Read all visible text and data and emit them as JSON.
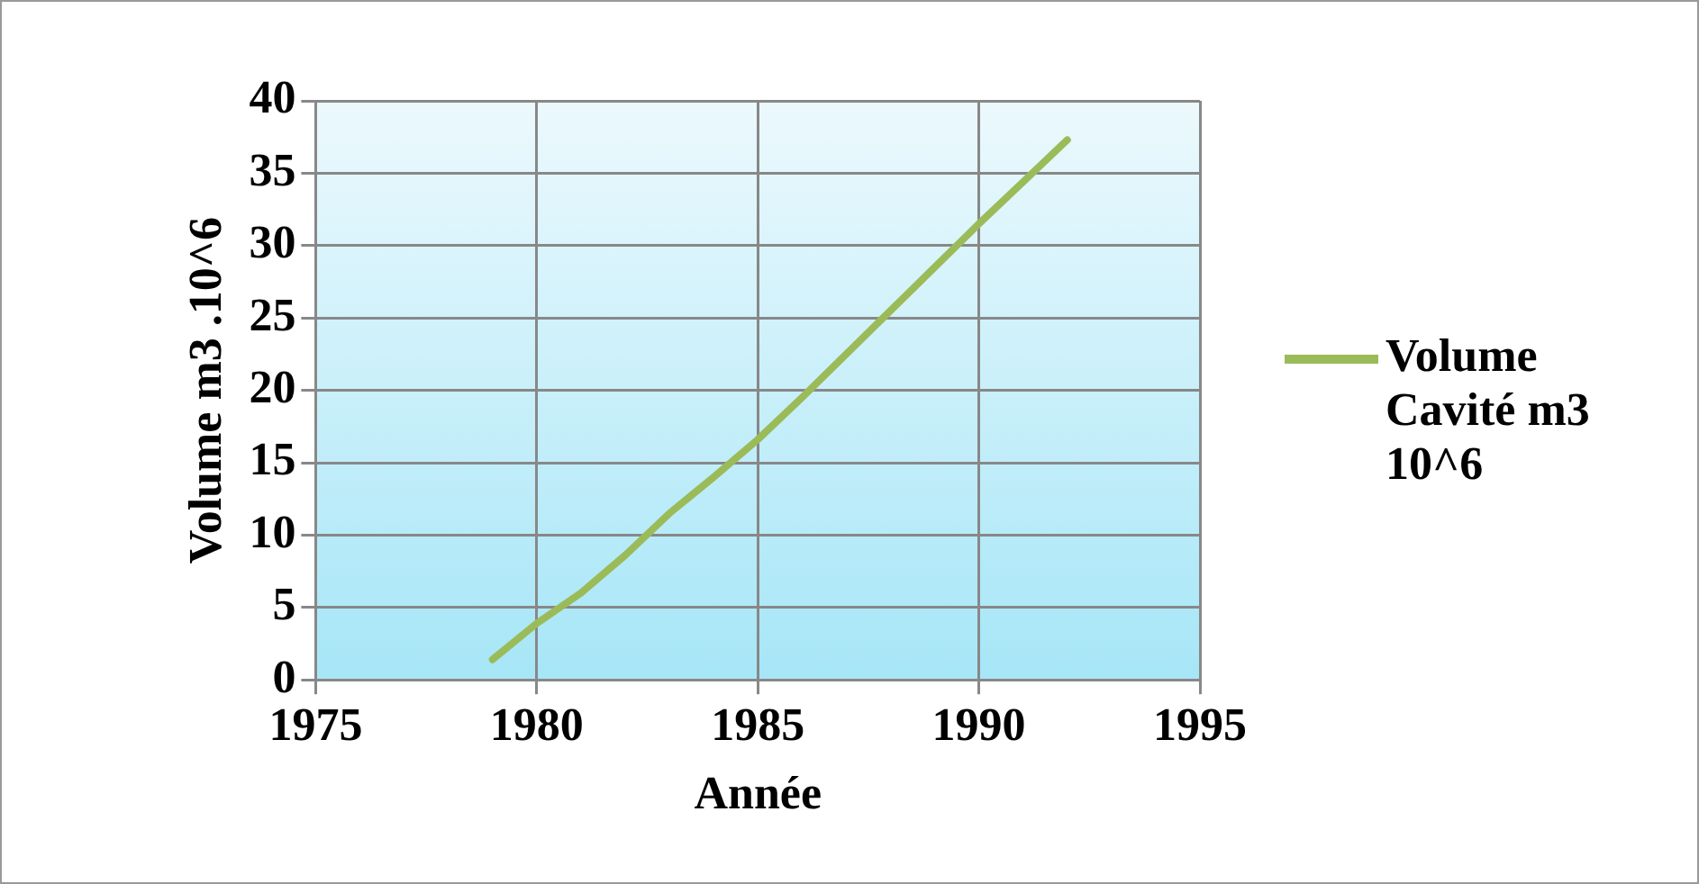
{
  "chart_data": {
    "type": "line",
    "xlabel": "Année",
    "ylabel": "Volume m3 .10^6",
    "x": [
      1979,
      1980,
      1981,
      1982,
      1983,
      1984,
      1985,
      1986,
      1987,
      1988,
      1989,
      1990,
      1991,
      1992
    ],
    "series": [
      {
        "name": "Volume Cavité m3 10^6",
        "color": "#9bbb59",
        "values": [
          1.4,
          3.9,
          6,
          8.6,
          11.5,
          14,
          16.6,
          19.5,
          22.5,
          25.5,
          28.5,
          31.5,
          34.4,
          37.3
        ]
      }
    ],
    "xlim": [
      1975,
      1995
    ],
    "xticks": [
      1975,
      1980,
      1985,
      1990,
      1995
    ],
    "ylim": [
      0,
      40
    ],
    "yticks": [
      0,
      5,
      10,
      15,
      20,
      25,
      30,
      35,
      40
    ],
    "grid": true,
    "legend": "right",
    "marker": "none",
    "line_style": "solid"
  }
}
